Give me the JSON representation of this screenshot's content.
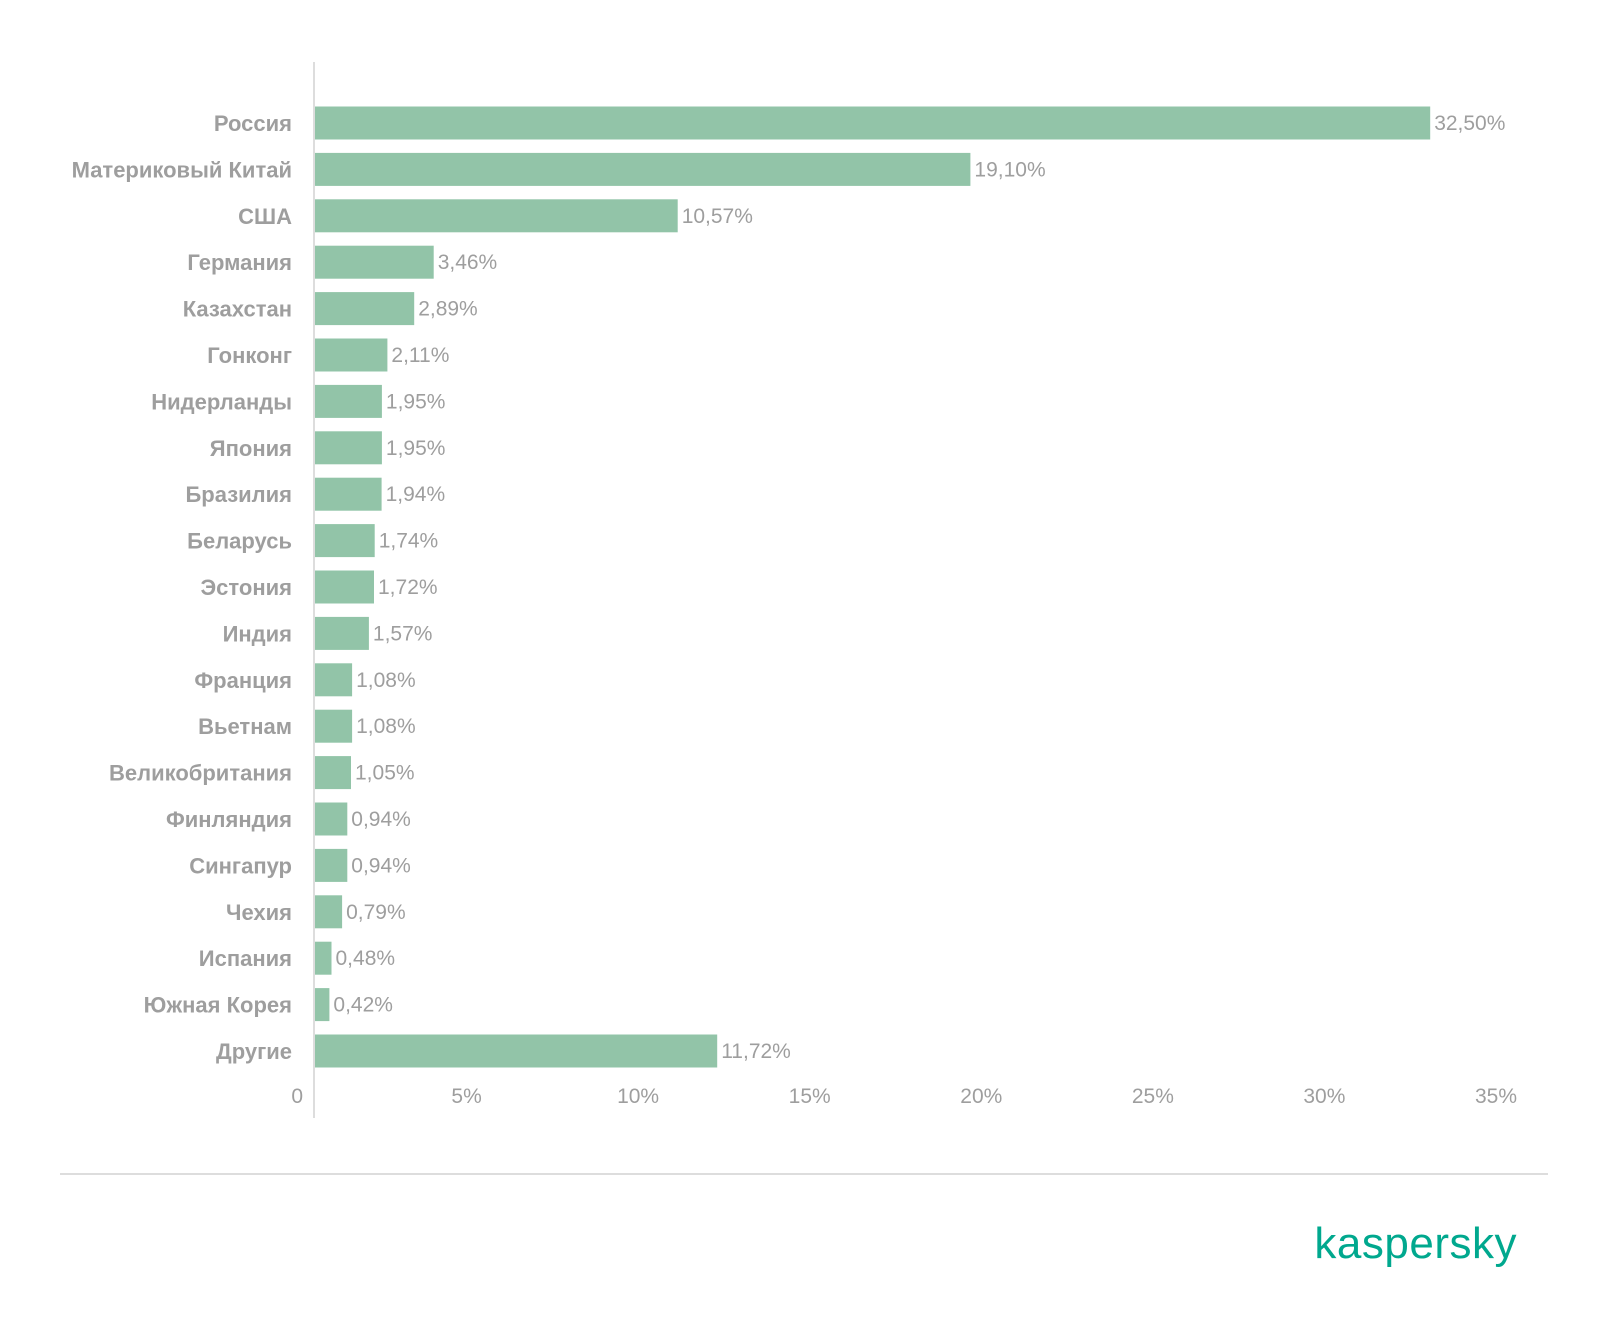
{
  "chart_data": {
    "type": "bar",
    "orientation": "horizontal",
    "categories": [
      "Россия",
      "Материковый Китай",
      "США",
      "Германия",
      "Казахстан",
      "Гонконг",
      "Нидерланды",
      "Япония",
      "Бразилия",
      "Беларусь",
      "Эстония",
      "Индия",
      "Франция",
      "Вьетнам",
      "Великобритания",
      "Финляндия",
      "Сингапур",
      "Чехия",
      "Испания",
      "Южная Корея",
      "Другие"
    ],
    "values": [
      32.5,
      19.1,
      10.57,
      3.46,
      2.89,
      2.11,
      1.95,
      1.95,
      1.94,
      1.74,
      1.72,
      1.57,
      1.08,
      1.08,
      1.05,
      0.94,
      0.94,
      0.79,
      0.48,
      0.42,
      11.72
    ],
    "value_labels": [
      "32,50%",
      "19,10%",
      "10,57%",
      "3,46%",
      "2,89%",
      "2,11%",
      "1,95%",
      "1,95%",
      "1,94%",
      "1,74%",
      "1,72%",
      "1,57%",
      "1,08%",
      "1,08%",
      "1,05%",
      "0,94%",
      "0,94%",
      "0,79%",
      "0,48%",
      "0,42%",
      "11,72%"
    ],
    "xlim": [
      0,
      35
    ],
    "x_ticks": [
      0,
      5,
      10,
      15,
      20,
      25,
      30,
      35
    ],
    "x_tick_labels": [
      "0",
      "5%",
      "10%",
      "15%",
      "20%",
      "25%",
      "30%",
      "35%"
    ],
    "xlabel": "",
    "ylabel": "",
    "grid": false,
    "legend": "none",
    "bar_color": "#92c4a8"
  },
  "colors": {
    "text": "#9e9e9e",
    "axis": "#dddddd",
    "brand": "#00a88e"
  },
  "branding": {
    "logo_text": "kaspersky"
  }
}
